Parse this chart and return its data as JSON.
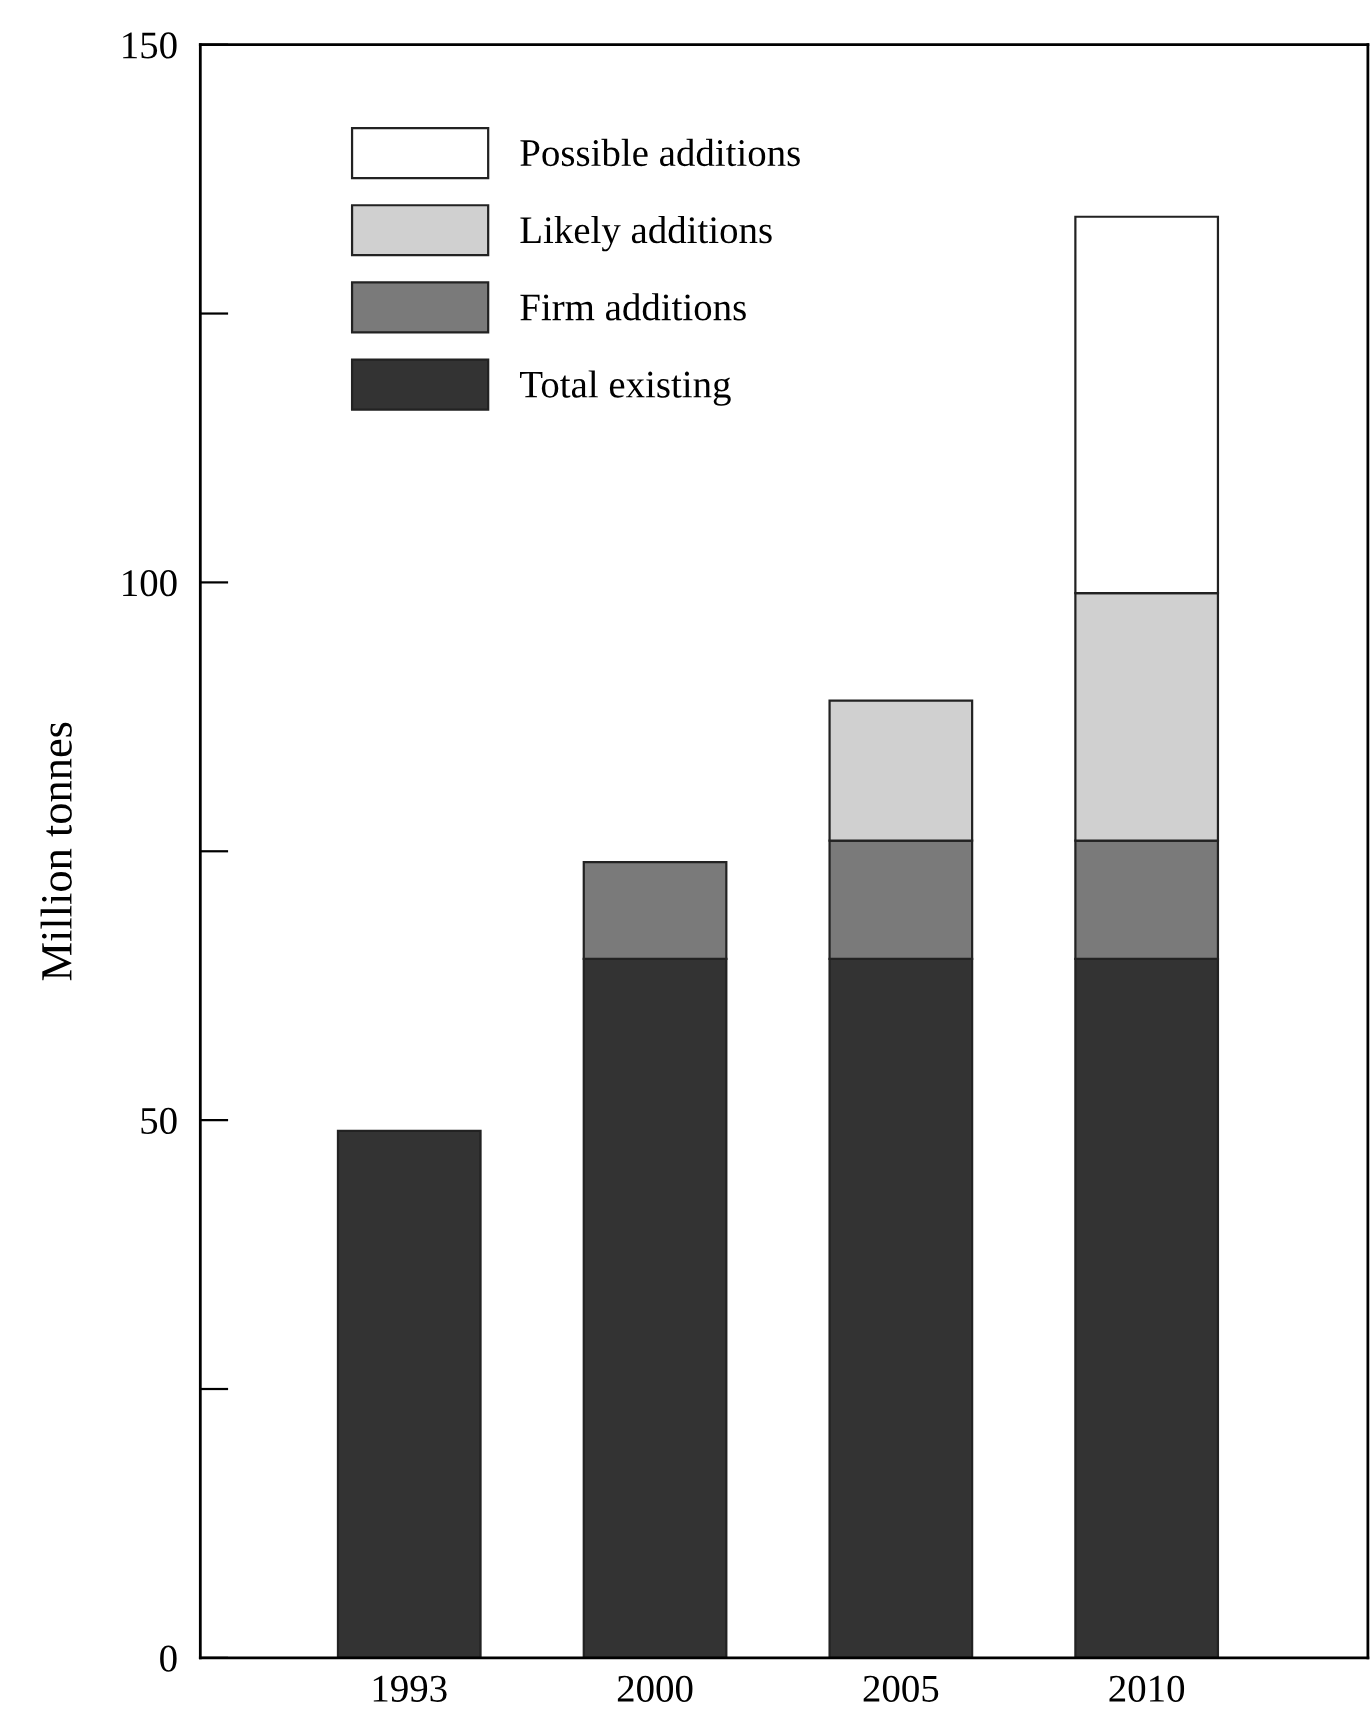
{
  "chart_data": {
    "type": "bar",
    "stacked": true,
    "ylabel": "Million tonnes",
    "categories": [
      "1993",
      "2000",
      "2005",
      "2010"
    ],
    "series": [
      {
        "name": "Total existing",
        "color": "#333333",
        "values": [
          49,
          65,
          65,
          65
        ]
      },
      {
        "name": "Firm additions",
        "color": "#7a7a7a",
        "values": [
          0,
          9,
          11,
          11
        ]
      },
      {
        "name": "Likely additions",
        "color": "#d0d0d0",
        "values": [
          0,
          0,
          13,
          23
        ]
      },
      {
        "name": "Possible additions",
        "color": "#ffffff",
        "values": [
          0,
          0,
          0,
          35
        ]
      }
    ],
    "ylim": [
      0,
      150
    ],
    "yticks": [
      0,
      {
        "value": 25,
        "label": null
      },
      50,
      {
        "value": 75,
        "label": null
      },
      100,
      {
        "value": 125,
        "label": null
      },
      150
    ],
    "grid": false,
    "legend": "top left"
  }
}
